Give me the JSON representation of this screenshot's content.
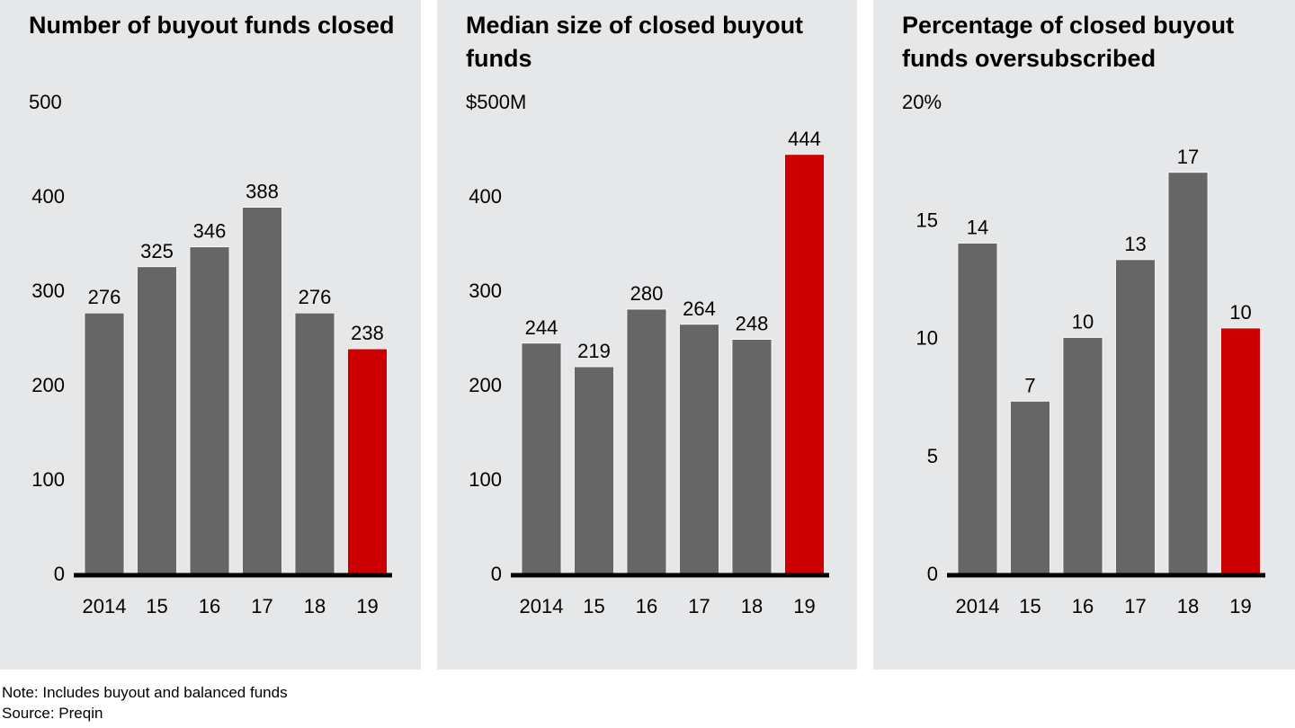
{
  "colors": {
    "panel_bg": "#e6e7e9",
    "bar": "#666666",
    "highlight": "#cc0000",
    "axis": "#000000"
  },
  "chart_data": [
    {
      "type": "bar",
      "title": "Number of buyout funds closed",
      "categories": [
        "2014",
        "15",
        "16",
        "17",
        "18",
        "19"
      ],
      "values": [
        276,
        325,
        346,
        388,
        276,
        238
      ],
      "data_labels": [
        "276",
        "325",
        "346",
        "388",
        "276",
        "238"
      ],
      "highlight_index": 5,
      "ylim": [
        0,
        500
      ],
      "yticks": [
        0,
        100,
        200,
        300,
        400,
        500
      ],
      "ytick_labels": [
        "0",
        "100",
        "200",
        "300",
        "400",
        "500"
      ],
      "xlabel": "",
      "ylabel": "",
      "grid": false
    },
    {
      "type": "bar",
      "title": "Median size of closed buyout funds",
      "categories": [
        "2014",
        "15",
        "16",
        "17",
        "18",
        "19"
      ],
      "values": [
        244,
        219,
        280,
        264,
        248,
        444
      ],
      "data_labels": [
        "244",
        "219",
        "280",
        "264",
        "248",
        "444"
      ],
      "highlight_index": 5,
      "ylim": [
        0,
        500
      ],
      "yticks": [
        0,
        100,
        200,
        300,
        400,
        500
      ],
      "ytick_labels": [
        "0",
        "100",
        "200",
        "300",
        "400",
        "$500M"
      ],
      "xlabel": "",
      "ylabel": "",
      "grid": false
    },
    {
      "type": "bar",
      "title": "Percentage of closed buyout funds oversubscribed",
      "categories": [
        "2014",
        "15",
        "16",
        "17",
        "18",
        "19"
      ],
      "values": [
        14,
        7.3,
        10,
        13.3,
        17,
        10.4
      ],
      "data_labels": [
        "14",
        "7",
        "10",
        "13",
        "17",
        "10"
      ],
      "highlight_index": 5,
      "ylim": [
        0,
        20
      ],
      "yticks": [
        0,
        5,
        10,
        15,
        20
      ],
      "ytick_labels": [
        "0",
        "5",
        "10",
        "15",
        "20%"
      ],
      "xlabel": "",
      "ylabel": "",
      "grid": false
    }
  ],
  "footer": {
    "note": "Note: Includes buyout and balanced funds",
    "source": "Source: Preqin"
  }
}
